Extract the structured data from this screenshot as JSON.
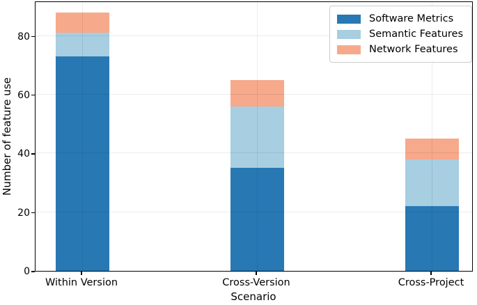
{
  "figure": {
    "background": "#ffffff"
  },
  "axes": {
    "xlabel": "Scenario",
    "ylabel": "Number of feature use"
  },
  "chart_data": {
    "type": "bar",
    "stacked": true,
    "title": "",
    "xlabel": "Scenario",
    "ylabel": "Number of feature use",
    "categories": [
      "Within Version",
      "Cross-Version",
      "Cross-Project"
    ],
    "series": [
      {
        "name": "Software Metrics",
        "color": "#2878b4",
        "values": [
          73,
          35,
          22
        ]
      },
      {
        "name": "Semantic Features",
        "color": "#a7cee1",
        "values": [
          8,
          21,
          16
        ]
      },
      {
        "name": "Network Features",
        "color": "#f7a98b",
        "values": [
          7,
          9,
          7
        ]
      }
    ],
    "totals": [
      88,
      65,
      45
    ],
    "yticks": [
      0,
      20,
      40,
      60,
      80
    ],
    "ylim": [
      0,
      92
    ],
    "grid": true,
    "legend": {
      "position": "upper right",
      "entries": [
        "Software Metrics",
        "Semantic Features",
        "Network Features"
      ]
    }
  }
}
